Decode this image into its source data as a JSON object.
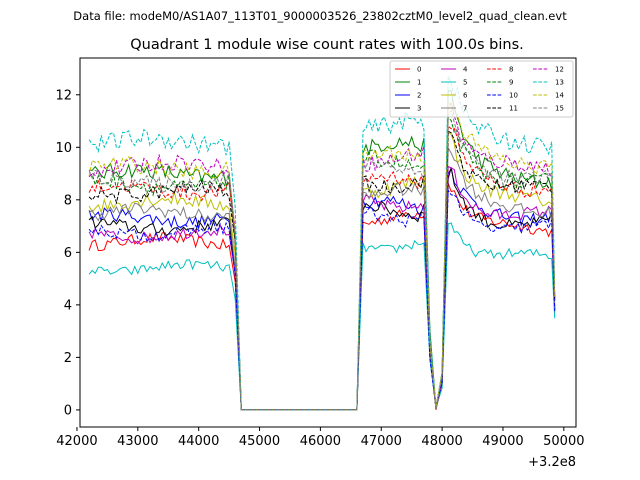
{
  "chart_data": {
    "type": "line",
    "suptitle": "Data file: modeM0/AS1A07_113T01_9000003526_23802cztM0_level2_quad_clean.evt",
    "title": "Quadrant 1 module wise count rates with 100.0s bins.",
    "x_offset_label": "+3.2e8",
    "xlim": [
      42050,
      50200
    ],
    "ylim": [
      -0.65,
      13.4
    ],
    "xticks": [
      42000,
      43000,
      44000,
      45000,
      46000,
      47000,
      48000,
      49000,
      50000
    ],
    "xtick_labels": [
      "42000",
      "43000",
      "44000",
      "45000",
      "46000",
      "47000",
      "48000",
      "49000",
      "50000"
    ],
    "yticks": [
      0,
      2,
      4,
      6,
      8,
      10,
      12
    ],
    "ytick_labels": [
      "0",
      "2",
      "4",
      "6",
      "8",
      "10",
      "12"
    ],
    "legend_position": "upper-right",
    "segments": [
      {
        "name": "seg1",
        "x_start": 42200,
        "x_end": 44500
      },
      {
        "name": "drop",
        "x_values": [
          44600,
          44700
        ]
      },
      {
        "name": "gap",
        "x_start": 44700,
        "x_end": 46600
      },
      {
        "name": "seg2",
        "x_start": 46700,
        "x_end": 47700
      },
      {
        "name": "dip",
        "x_values": [
          47800,
          47900,
          48000,
          48100
        ]
      },
      {
        "name": "seg3",
        "x_start": 48100,
        "x_end": 49800
      }
    ],
    "series": [
      {
        "name": "0",
        "color": "#ff0000",
        "dash": "solid",
        "level1": 6.4,
        "level2": 7.3,
        "level3": 6.9,
        "spike": 8.6
      },
      {
        "name": "1",
        "color": "#008000",
        "dash": "solid",
        "level1": 9.0,
        "level2": 10.0,
        "level3": 8.8,
        "spike": 12.0
      },
      {
        "name": "2",
        "color": "#0000ff",
        "dash": "solid",
        "level1": 7.3,
        "level2": 7.8,
        "level3": 7.4,
        "spike": 9.0
      },
      {
        "name": "3",
        "color": "#000000",
        "dash": "solid",
        "level1": 7.0,
        "level2": 7.6,
        "level3": 7.1,
        "spike": 8.9
      },
      {
        "name": "4",
        "color": "#bf00bf",
        "dash": "solid",
        "level1": 6.7,
        "level2": 7.9,
        "level3": 7.4,
        "spike": 9.3
      },
      {
        "name": "5",
        "color": "#00bfbf",
        "dash": "solid",
        "level1": 5.4,
        "level2": 6.3,
        "level3": 5.8,
        "spike": 7.2
      },
      {
        "name": "6",
        "color": "#bfbf00",
        "dash": "solid",
        "level1": 7.9,
        "level2": 8.5,
        "level3": 8.0,
        "spike": 10.5
      },
      {
        "name": "7",
        "color": "#808080",
        "dash": "solid",
        "level1": 7.5,
        "level2": 8.2,
        "level3": 7.6,
        "spike": 10.0
      },
      {
        "name": "8",
        "color": "#ff0000",
        "dash": "dashed",
        "level1": 8.4,
        "level2": 8.7,
        "level3": 8.5,
        "spike": 10.8
      },
      {
        "name": "9",
        "color": "#008000",
        "dash": "dashed",
        "level1": 8.6,
        "level2": 9.4,
        "level3": 8.7,
        "spike": 11.0
      },
      {
        "name": "10",
        "color": "#0000ff",
        "dash": "dashed",
        "level1": 6.8,
        "level2": 7.4,
        "level3": 6.9,
        "spike": 8.4
      },
      {
        "name": "11",
        "color": "#000000",
        "dash": "dashed",
        "level1": 8.3,
        "level2": 8.7,
        "level3": 8.4,
        "spike": 10.7
      },
      {
        "name": "12",
        "color": "#bf00bf",
        "dash": "dashed",
        "level1": 9.3,
        "level2": 9.6,
        "level3": 9.2,
        "spike": 11.6
      },
      {
        "name": "13",
        "color": "#00bfbf",
        "dash": "dashed",
        "level1": 10.2,
        "level2": 10.8,
        "level3": 10.1,
        "spike": 12.7
      },
      {
        "name": "14",
        "color": "#bfbf00",
        "dash": "dashed",
        "level1": 9.2,
        "level2": 9.6,
        "level3": 9.4,
        "spike": 11.8
      },
      {
        "name": "15",
        "color": "#808080",
        "dash": "dashed",
        "level1": 8.7,
        "level2": 9.2,
        "level3": 8.9,
        "spike": 11.2
      }
    ]
  }
}
